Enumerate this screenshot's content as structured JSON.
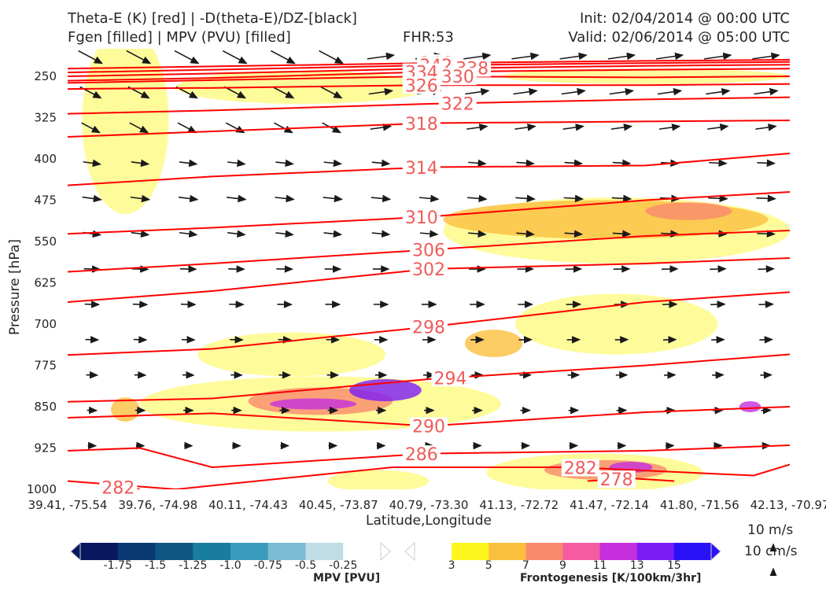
{
  "header": {
    "title_left_1": "Theta-E (K) [red] | -D(theta-E)/DZ-[black]",
    "title_left_2": "Fgen [filled] | MPV (PVU) [filled]",
    "fhr": "FHR:53",
    "init": "Init: 02/04/2014 @ 00:00 UTC",
    "valid": "Valid: 02/06/2014 @ 05:00 UTC"
  },
  "colors": {
    "theta_e": "#ff0000",
    "vectors": "#1a1a1a",
    "mpv_scale": [
      "#08175e",
      "#0b3a72",
      "#0e5882",
      "#197d9f",
      "#3a9bbd",
      "#7bbcd3",
      "#c0dde6",
      "#ffffff"
    ],
    "fgen_scale": [
      "#ffffff",
      "#fcf61e",
      "#fbbf3e",
      "#f98a6e",
      "#f65ba2",
      "#c52fdc",
      "#7b1cf5",
      "#2a12f7"
    ]
  },
  "chart_data": {
    "type": "cross-section",
    "xlabel": "Latitude,Longitude",
    "ylabel": "Pressure [hPa]",
    "x_ticks": [
      "39.41, -75.54",
      "39.76, -74.98",
      "40.11, -74.43",
      "40.45, -73.87",
      "40.79, -73.30",
      "41.13, -72.72",
      "41.47, -72.14",
      "41.80, -71.56",
      "42.13, -70.97"
    ],
    "y_ticks": [
      250,
      325,
      400,
      475,
      550,
      625,
      700,
      775,
      850,
      925,
      1000
    ],
    "ylim": [
      1000,
      200
    ],
    "theta_e_contours": [
      {
        "label": "346",
        "level": 346,
        "points": [
          [
            0,
            236
          ],
          [
            0.2,
            232
          ],
          [
            0.5,
            226
          ],
          [
            0.8,
            222
          ],
          [
            1,
            220
          ]
        ],
        "label_x": 0.51
      },
      {
        "label": "342",
        "level": 342,
        "points": [
          [
            0,
            243
          ],
          [
            0.2,
            238
          ],
          [
            0.5,
            230
          ],
          [
            0.8,
            226
          ],
          [
            1,
            224
          ]
        ],
        "label_x": 0.51
      },
      {
        "label": "338",
        "level": 338,
        "points": [
          [
            0,
            250
          ],
          [
            0.2,
            245
          ],
          [
            0.5,
            236
          ],
          [
            0.8,
            231
          ],
          [
            1,
            229
          ]
        ],
        "label_x": 0.56
      },
      {
        "label": "334",
        "level": 334,
        "points": [
          [
            0,
            258
          ],
          [
            0.2,
            253
          ],
          [
            0.5,
            242
          ],
          [
            0.8,
            238
          ],
          [
            1,
            236
          ]
        ],
        "label_x": 0.49
      },
      {
        "label": "330",
        "level": 330,
        "points": [
          [
            0,
            262
          ],
          [
            0.2,
            257
          ],
          [
            0.5,
            250
          ],
          [
            0.8,
            252
          ],
          [
            1,
            250
          ]
        ],
        "label_x": 0.54
      },
      {
        "label": "326",
        "level": 326,
        "points": [
          [
            0,
            273
          ],
          [
            0.2,
            271
          ],
          [
            0.5,
            266
          ],
          [
            0.8,
            266
          ],
          [
            1,
            264
          ]
        ],
        "label_x": 0.49
      },
      {
        "label": "322",
        "level": 322,
        "points": [
          [
            0,
            318
          ],
          [
            0.2,
            312
          ],
          [
            0.5,
            300
          ],
          [
            0.8,
            292
          ],
          [
            1,
            288
          ]
        ],
        "label_x": 0.54
      },
      {
        "label": "318",
        "level": 318,
        "points": [
          [
            0,
            360
          ],
          [
            0.2,
            350
          ],
          [
            0.5,
            335
          ],
          [
            0.8,
            332
          ],
          [
            1,
            330
          ]
        ],
        "label_x": 0.49
      },
      {
        "label": "314",
        "level": 314,
        "points": [
          [
            0,
            448
          ],
          [
            0.2,
            432
          ],
          [
            0.5,
            415
          ],
          [
            0.8,
            412
          ],
          [
            1,
            390
          ]
        ],
        "label_x": 0.49
      },
      {
        "label": "310",
        "level": 310,
        "points": [
          [
            0,
            536
          ],
          [
            0.2,
            525
          ],
          [
            0.5,
            505
          ],
          [
            0.8,
            475
          ],
          [
            1,
            460
          ]
        ],
        "label_x": 0.49
      },
      {
        "label": "306",
        "level": 306,
        "points": [
          [
            0,
            605
          ],
          [
            0.2,
            590
          ],
          [
            0.5,
            565
          ],
          [
            0.8,
            540
          ],
          [
            1,
            530
          ]
        ],
        "label_x": 0.5
      },
      {
        "label": "302",
        "level": 302,
        "points": [
          [
            0,
            660
          ],
          [
            0.2,
            640
          ],
          [
            0.5,
            600
          ],
          [
            0.8,
            590
          ],
          [
            1,
            580
          ]
        ],
        "label_x": 0.5
      },
      {
        "label": "298",
        "level": 298,
        "points": [
          [
            0,
            756
          ],
          [
            0.2,
            745
          ],
          [
            0.5,
            705
          ],
          [
            0.8,
            660
          ],
          [
            1,
            642
          ]
        ],
        "label_x": 0.5
      },
      {
        "label": "294",
        "level": 294,
        "points": [
          [
            0,
            841
          ],
          [
            0.2,
            835
          ],
          [
            0.5,
            800
          ],
          [
            0.8,
            775
          ],
          [
            1,
            755
          ]
        ],
        "label_x": 0.53
      },
      {
        "label": "290",
        "level": 290,
        "points": [
          [
            0,
            870
          ],
          [
            0.2,
            862
          ],
          [
            0.5,
            885
          ],
          [
            0.8,
            860
          ],
          [
            1,
            850
          ]
        ],
        "label_x": 0.5
      },
      {
        "label": "286",
        "level": 286,
        "points": [
          [
            0,
            930
          ],
          [
            0.1,
            925
          ],
          [
            0.2,
            960
          ],
          [
            0.5,
            935
          ],
          [
            0.8,
            930
          ],
          [
            1,
            920
          ]
        ],
        "label_x": 0.49
      },
      {
        "label": "282",
        "level": 282,
        "points": [
          [
            0,
            985
          ],
          [
            0.15,
            1000
          ],
          [
            0.45,
            960
          ],
          [
            0.7,
            960
          ],
          [
            0.95,
            975
          ],
          [
            1,
            955
          ]
        ],
        "label_x": 0.71
      },
      {
        "label": "278",
        "level": 278,
        "points": [
          [
            0.72,
            985
          ],
          [
            0.78,
            980
          ],
          [
            0.84,
            985
          ]
        ],
        "label_x": 0.76
      },
      {
        "label": "282",
        "level": 282,
        "points": [
          [
            0.06,
            995
          ],
          [
            0.1,
            1000
          ]
        ],
        "label_x": 0.07
      }
    ],
    "fgen_areas": [
      {
        "level": 3,
        "x": 0.18,
        "p": 755,
        "w": 0.26,
        "h": 40
      },
      {
        "level": 3,
        "x": 0.02,
        "p": 330,
        "w": 0.12,
        "h": 170
      },
      {
        "level": 3,
        "x": 0.15,
        "p": 270,
        "w": 0.35,
        "h": 30
      },
      {
        "level": 3,
        "x": 0.6,
        "p": 250,
        "w": 0.4,
        "h": 14
      },
      {
        "level": 3,
        "x": 0.52,
        "p": 530,
        "w": 0.48,
        "h": 60
      },
      {
        "level": 5,
        "x": 0.52,
        "p": 510,
        "w": 0.45,
        "h": 35
      },
      {
        "level": 7,
        "x": 0.8,
        "p": 495,
        "w": 0.12,
        "h": 16
      },
      {
        "level": 3,
        "x": 0.62,
        "p": 700,
        "w": 0.28,
        "h": 55
      },
      {
        "level": 5,
        "x": 0.55,
        "p": 735,
        "w": 0.08,
        "h": 25
      },
      {
        "level": 3,
        "x": 0.1,
        "p": 845,
        "w": 0.5,
        "h": 50
      },
      {
        "level": 7,
        "x": 0.25,
        "p": 840,
        "w": 0.2,
        "h": 25
      },
      {
        "level": 11,
        "x": 0.28,
        "p": 845,
        "w": 0.12,
        "h": 10
      },
      {
        "level": 13,
        "x": 0.39,
        "p": 820,
        "w": 0.1,
        "h": 20
      },
      {
        "level": 3,
        "x": 0.58,
        "p": 970,
        "w": 0.3,
        "h": 35
      },
      {
        "level": 7,
        "x": 0.66,
        "p": 965,
        "w": 0.17,
        "h": 18
      },
      {
        "level": 11,
        "x": 0.75,
        "p": 960,
        "w": 0.06,
        "h": 10
      },
      {
        "level": 3,
        "x": 0.36,
        "p": 985,
        "w": 0.14,
        "h": 20
      },
      {
        "level": 5,
        "x": 0.06,
        "p": 855,
        "w": 0.04,
        "h": 22
      },
      {
        "level": 11,
        "x": 0.93,
        "p": 850,
        "w": 0.03,
        "h": 10
      }
    ],
    "vectors": {
      "rows": 12,
      "cols": 15,
      "scale_label": "10 m/s",
      "scale_label_2": "10 cm/s"
    }
  },
  "colorbars": {
    "mpv": {
      "title": "MPV [PVU]",
      "ticks": [
        "-1.75",
        "-1.5",
        "-1.25",
        "-1.0",
        "-0.75",
        "-0.5",
        "-0.25"
      ]
    },
    "fgen": {
      "title": "Frontogenesis [K/100km/3hr]",
      "ticks": [
        "3",
        "5",
        "7",
        "9",
        "11",
        "13",
        "15"
      ]
    }
  }
}
